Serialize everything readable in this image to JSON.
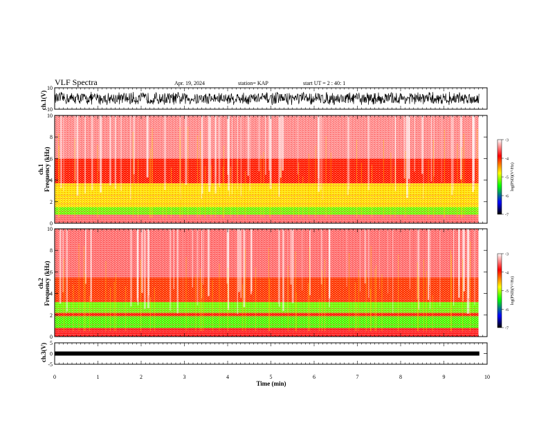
{
  "header": {
    "title": "VLF Spectra",
    "date": "Apr. 19, 2024",
    "station": "station= KAP",
    "start": "start UT = 2 : 40: 1"
  },
  "colorbar": {
    "ticks": [
      "-3",
      "-4",
      "-5",
      "-6",
      "-7"
    ],
    "label": "log(PSD)(V²/Hz)",
    "colors": [
      "#ffffff",
      "#ff0000",
      "#ffff00",
      "#00ff00",
      "#0000ff",
      "#000000"
    ]
  },
  "chart_data": [
    {
      "id": "ch1-wave",
      "type": "line",
      "ylabel": "ch.1(V)",
      "ylim": [
        -10,
        10
      ],
      "yticks": [
        "10",
        "-10"
      ],
      "xlim": [
        0,
        10
      ],
      "series": [
        {
          "values_note_range": [
            -5,
            5
          ],
          "color": "#000000"
        }
      ]
    },
    {
      "id": "ch1-spec",
      "type": "heatmap",
      "ylabel_top": "ch.1",
      "ylabel": "Frequency (kHz)",
      "ylim": [
        0,
        10
      ],
      "yticks": [
        "0",
        "2",
        "4",
        "6",
        "8",
        "10"
      ],
      "xlim": [
        0,
        9.8
      ],
      "zlim": [
        -7,
        -3
      ],
      "bands": [
        {
          "from": 0,
          "to": 0.8,
          "level": -3.5
        },
        {
          "from": 0.8,
          "to": 1.5,
          "level": -5.2
        },
        {
          "from": 1.5,
          "to": 3.7,
          "level": -4.7
        },
        {
          "from": 3.7,
          "to": 6,
          "level": -4.0
        },
        {
          "from": 6,
          "to": 10,
          "level": -3.4
        }
      ]
    },
    {
      "id": "ch2-spec",
      "type": "heatmap",
      "ylabel_top": "ch.2",
      "ylabel": "Frequency (kHz)",
      "ylim": [
        0,
        10
      ],
      "yticks": [
        "0",
        "2",
        "4",
        "6",
        "8",
        "10"
      ],
      "xlim": [
        0,
        9.8
      ],
      "zlim": [
        -7,
        -3
      ],
      "bands": [
        {
          "from": 0,
          "to": 0.8,
          "level": -3.8
        },
        {
          "from": 0.8,
          "to": 1.9,
          "level": -5.3
        },
        {
          "from": 1.9,
          "to": 2.2,
          "level": -4.0
        },
        {
          "from": 2.2,
          "to": 3.2,
          "level": -5.2
        },
        {
          "from": 3.2,
          "to": 5.5,
          "level": -4.1
        },
        {
          "from": 5.5,
          "to": 10,
          "level": -3.5
        }
      ]
    },
    {
      "id": "ch3-wave",
      "type": "line",
      "ylabel": "ch.3(V)",
      "ylim": [
        -5,
        5
      ],
      "yticks": [
        "5",
        "0",
        "-5"
      ],
      "xlim": [
        0,
        10
      ],
      "series": [
        {
          "values_note_range": [
            -0.3,
            0.3
          ],
          "color": "#000000"
        }
      ]
    }
  ],
  "xaxis": {
    "label": "Time (min)",
    "ticks": [
      "0",
      "1",
      "2",
      "3",
      "4",
      "5",
      "6",
      "7",
      "8",
      "9",
      "10"
    ],
    "range": [
      0,
      10
    ]
  }
}
